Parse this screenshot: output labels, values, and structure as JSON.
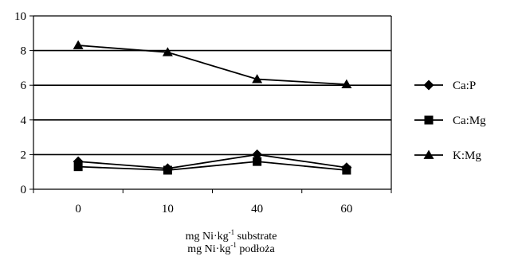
{
  "chart_data": {
    "type": "line",
    "categories": [
      "0",
      "10",
      "40",
      "60"
    ],
    "series": [
      {
        "name": "Ca:P",
        "marker": "diamond",
        "values": [
          1.6,
          1.2,
          2.0,
          1.25
        ]
      },
      {
        "name": "Ca:Mg",
        "marker": "square",
        "values": [
          1.3,
          1.1,
          1.6,
          1.1
        ]
      },
      {
        "name": "K:Mg",
        "marker": "triangle",
        "values": [
          8.3,
          7.9,
          6.35,
          6.05
        ]
      }
    ],
    "ylim": [
      0,
      10
    ],
    "yticks": [
      "0",
      "2",
      "4",
      "6",
      "8",
      "10"
    ],
    "grid": true,
    "legend_position": "right",
    "line_color": "#000000",
    "xlabel": {
      "line1": {
        "prefix": "mg Ni·kg",
        "sup": "-1",
        "suffix": " substrate"
      },
      "line2": {
        "prefix": "mg Ni·kg",
        "sup": "-1",
        "suffix": " podłoża"
      }
    }
  }
}
